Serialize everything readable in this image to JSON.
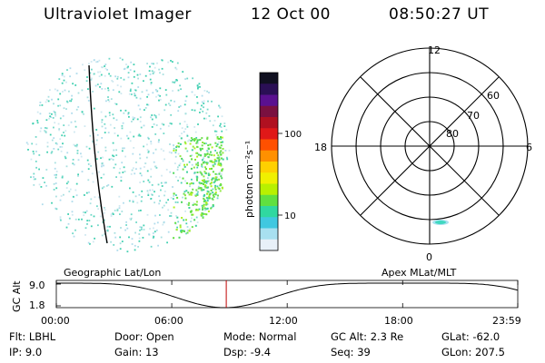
{
  "header": {
    "instrument": "Ultraviolet Imager",
    "date": "12 Oct 00",
    "time": "08:50:27 UT"
  },
  "colorbar": {
    "units": "photon cm⁻²s⁻¹",
    "tick_labels": [
      "100",
      "10"
    ],
    "colors": [
      "#101020",
      "#2a0f55",
      "#5a1090",
      "#7a1040",
      "#b01020",
      "#e01818",
      "#ff5000",
      "#ff9000",
      "#ffd000",
      "#f0f000",
      "#b8f000",
      "#60e040",
      "#30d8a0",
      "#40c8e0",
      "#a8e0f0",
      "#e8f0f8"
    ]
  },
  "polar_plot": {
    "mlt_labels": [
      "12",
      "18",
      "6",
      "0"
    ],
    "lat_labels": [
      "60",
      "70",
      "80"
    ]
  },
  "timeline": {
    "left_title": "Geographic Lat/Lon",
    "right_title": "Apex MLat/MLT",
    "y_axis_label": "GC Alt",
    "y_ticks": [
      "9.0",
      "1.8"
    ],
    "x_ticks": [
      "00:00",
      "06:00",
      "12:00",
      "18:00",
      "23:59"
    ],
    "marker_time": "08:50",
    "marker_color": "#c00000",
    "curve_color": "#000000"
  },
  "info": {
    "flt": "Flt: LBHL",
    "ip": "IP:  9.0",
    "door": "Door: Open",
    "gain": "Gain: 13",
    "mode": "Mode: Normal",
    "dsp": "Dsp:   -9.4",
    "gc_alt": "GC Alt: 2.3 Re",
    "seq": "Seq: 39",
    "glat": "GLat: -62.0",
    "glon": "GLon: 207.5"
  }
}
